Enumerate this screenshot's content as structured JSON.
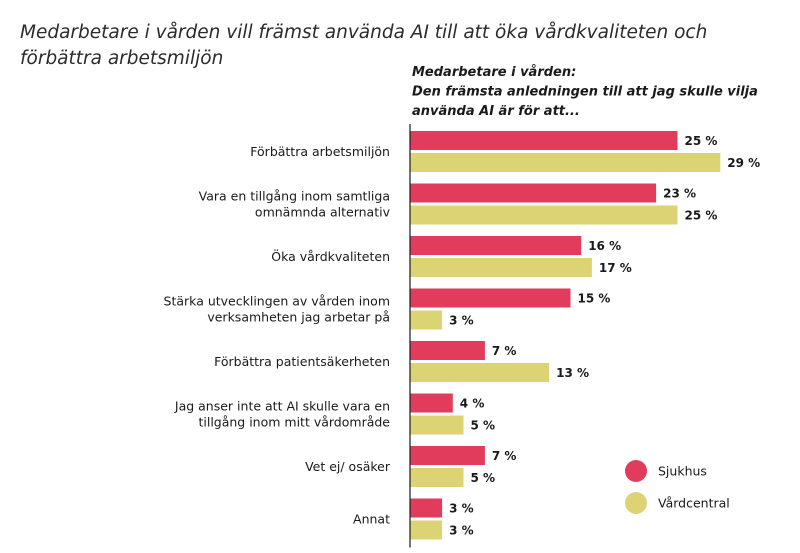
{
  "chart_data": {
    "type": "bar",
    "orientation": "horizontal",
    "title_lines": [
      "Medarbetare i vården vill främst använda AI till att öka vårdkvaliteten och",
      "förbättra arbetsmiljön"
    ],
    "subtitle_lines": [
      "Medarbetare i vården:",
      "Den främsta anledningen till att jag skulle vilja",
      "använda AI är för att..."
    ],
    "unit": "%",
    "categories": [
      [
        "Förbättra arbetsmiljön"
      ],
      [
        "Vara en tillgång inom samtliga",
        "omnämnda alternativ"
      ],
      [
        "Öka vårdkvaliteten"
      ],
      [
        "Stärka utvecklingen av vården inom",
        "verksamheten jag arbetar på"
      ],
      [
        "Förbättra patientsäkerheten"
      ],
      [
        "Jag anser inte att AI skulle vara en",
        "tillgång inom mitt vårdområde"
      ],
      [
        "Vet ej/ osäker"
      ],
      [
        "Annat"
      ]
    ],
    "series": [
      {
        "name": "Sjukhus",
        "color": "#e23c5c",
        "values": [
          25,
          23,
          16,
          15,
          7,
          4,
          7,
          3
        ]
      },
      {
        "name": "Vårdcentral",
        "color": "#dcd374",
        "values": [
          29,
          25,
          17,
          3,
          13,
          5,
          5,
          3
        ]
      }
    ],
    "value_labels": [
      [
        "25 %",
        "23 %",
        "16 %",
        "15 %",
        "7 %",
        "4 %",
        "7 %",
        "3 %"
      ],
      [
        "29 %",
        "25 %",
        "17 %",
        "3 %",
        "13 %",
        "5 %",
        "5 %",
        "3 %"
      ]
    ],
    "xlim": [
      0,
      29
    ],
    "legend_position": "bottom-right",
    "grid": false
  }
}
